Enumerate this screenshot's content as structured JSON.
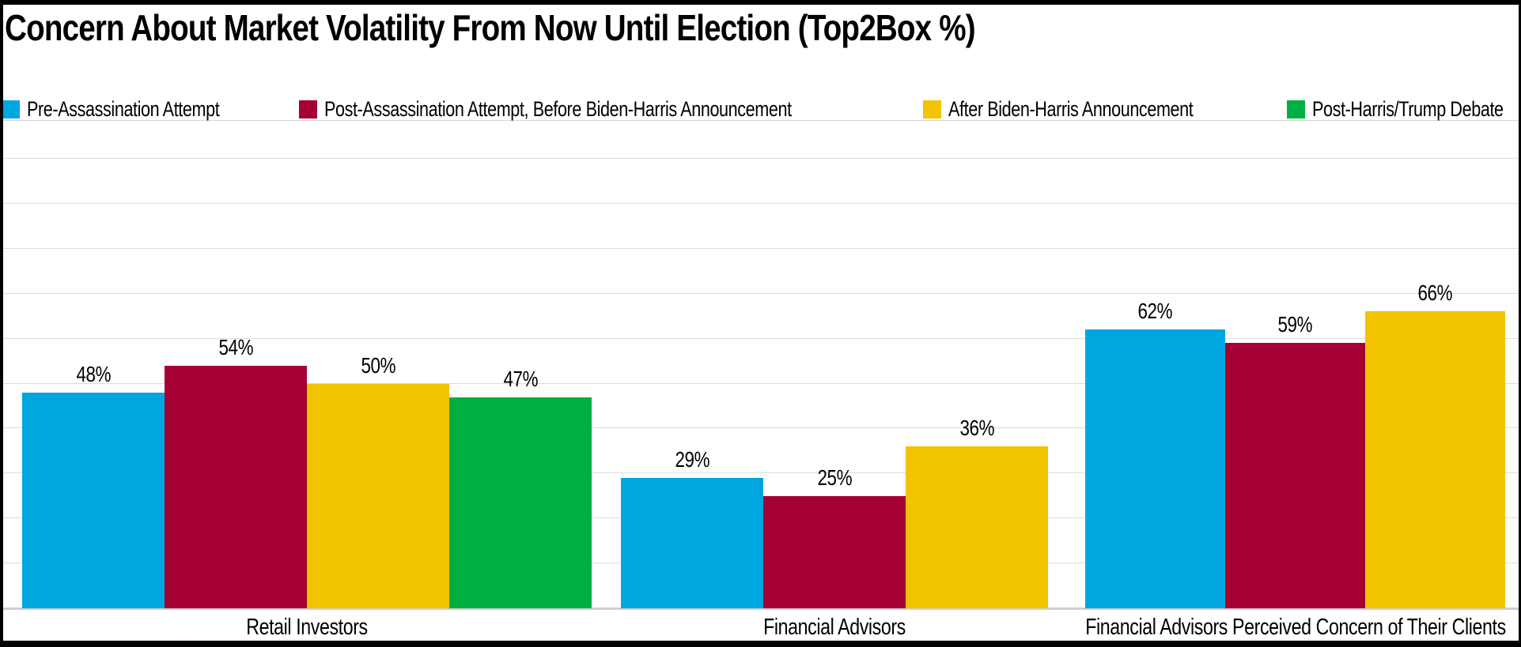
{
  "chart_data": {
    "type": "bar",
    "title": "Concern About Market Volatility From Now Until Election (Top2Box %)",
    "categories": [
      "Retail Investors",
      "Financial Advisors",
      "Financial Advisors Perceived Concern of Their Clients"
    ],
    "series": [
      {
        "name": "Pre-Assassination Attempt",
        "color": "#00A6E0",
        "values": [
          48,
          29,
          62
        ]
      },
      {
        "name": "Post-Assassination Attempt, Before Biden-Harris Announcement",
        "color": "#A50034",
        "values": [
          54,
          25,
          59
        ]
      },
      {
        "name": "After Biden-Harris Announcement",
        "color": "#F2C300",
        "values": [
          50,
          36,
          66
        ]
      },
      {
        "name": "Post-Harris/Trump Debate",
        "color": "#00AF41",
        "values": [
          47,
          null,
          null
        ]
      }
    ],
    "value_suffix": "%",
    "data_labels": true,
    "ylim": [
      0,
      108
    ],
    "gridlines": "horizontal, every 10%",
    "axis_tick_labels_visible": false,
    "legend_position": "top",
    "background_color": "#FFFFFF",
    "frame_color": "#000000"
  }
}
